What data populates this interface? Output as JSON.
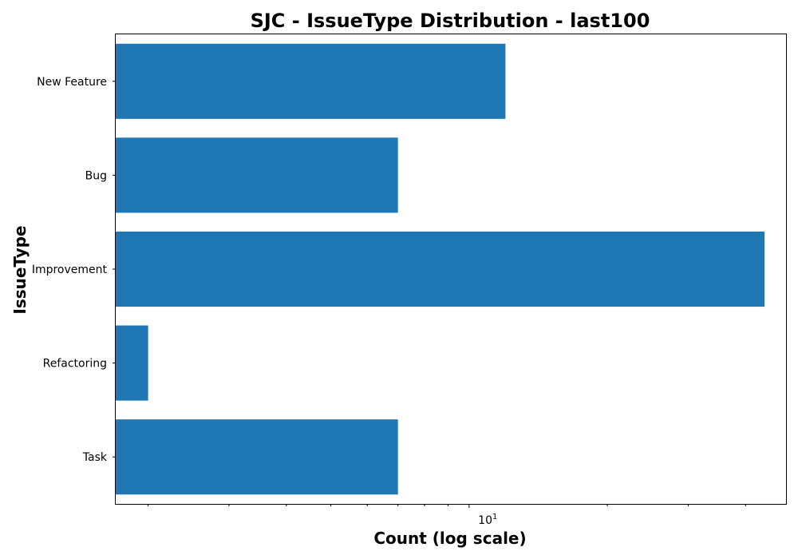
{
  "chart_data": {
    "type": "bar",
    "orientation": "horizontal",
    "title": "SJC - IssueType Distribution - last100",
    "xlabel": "Count (log scale)",
    "ylabel": "IssueType",
    "x_scale": "log",
    "xlim": [
      1.7,
      49
    ],
    "x_tick_label_base": "10",
    "x_tick_label_exp": "1",
    "categories": [
      "New Feature",
      "Bug",
      "Improvement",
      "Refactoring",
      "Task"
    ],
    "values": [
      12,
      7,
      44,
      2,
      7
    ],
    "bar_color": "#1f77b4",
    "grid": false
  }
}
